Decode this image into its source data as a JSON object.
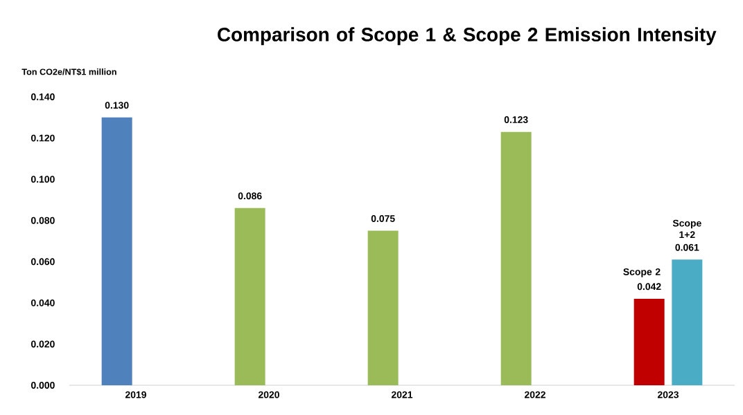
{
  "chart_data": {
    "type": "bar",
    "title": "Comparison of Scope 1 & Scope 2 Emission Intensity",
    "ylabel": "Ton CO2e/NT$1 million",
    "categories": [
      "2019",
      "2020",
      "2021",
      "2022",
      "2023"
    ],
    "series": [
      {
        "colors": [
          "#4f81bd",
          "#9bbb59",
          "#9bbb59",
          "#9bbb59",
          "#c00000"
        ],
        "values": [
          0.13,
          0.086,
          0.075,
          0.123,
          0.042
        ],
        "value_labels": [
          "0.130",
          "0.086",
          "0.075",
          "0.123",
          "0.042"
        ]
      },
      {
        "color": "#4bacc6",
        "values": [
          null,
          null,
          null,
          null,
          0.061
        ],
        "value_labels": [
          null,
          null,
          null,
          null,
          "0.061"
        ]
      }
    ],
    "ylim": [
      0,
      0.14
    ],
    "yticks": [
      {
        "value": 0,
        "label": "0.000"
      },
      {
        "value": 0.02,
        "label": "0.020"
      },
      {
        "value": 0.04,
        "label": "0.040"
      },
      {
        "value": 0.06,
        "label": "0.060"
      },
      {
        "value": 0.08,
        "label": "0.080"
      },
      {
        "value": 0.1,
        "label": "0.100"
      },
      {
        "value": 0.12,
        "label": "0.120"
      },
      {
        "value": 0.14,
        "label": "0.140"
      }
    ],
    "annotations": [
      "Scope 2",
      "Scope 1+2"
    ],
    "grid": false
  }
}
